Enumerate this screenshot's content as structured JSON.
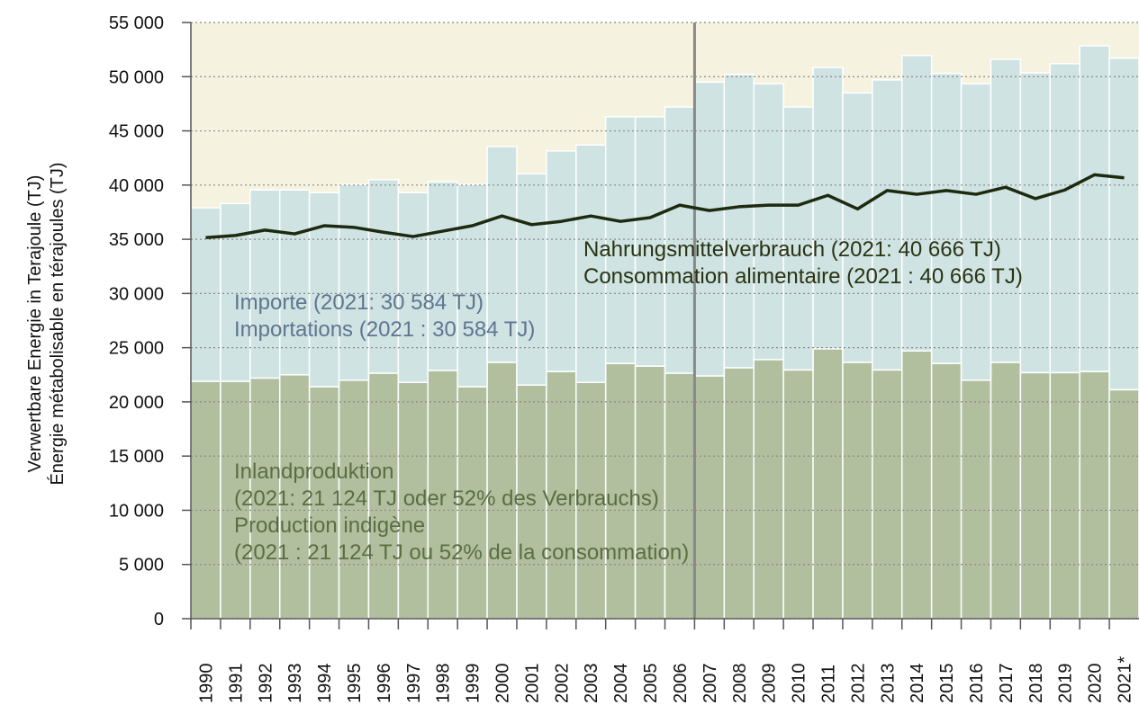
{
  "chart_data": {
    "type": "bar",
    "stacked": true,
    "ylabel": [
      "Verwertbare Energie in Terajoule (TJ)",
      "Énergie métabolisable en térajoules (TJ)"
    ],
    "categories": [
      "1990",
      "1991",
      "1992",
      "1993",
      "1994",
      "1995",
      "1996",
      "1997",
      "1998",
      "1999",
      "2000",
      "2001",
      "2002",
      "2003",
      "2004",
      "2005",
      "2006",
      "2007",
      "2008",
      "2009",
      "2010",
      "2011",
      "2012",
      "2013",
      "2014",
      "2015",
      "2016",
      "2017",
      "2018",
      "2019",
      "2020",
      "2021*"
    ],
    "series": [
      {
        "color": "#b2bf9f",
        "values": [
          21900,
          21900,
          22200,
          22500,
          21400,
          22000,
          22650,
          21800,
          22900,
          21400,
          23650,
          21550,
          22800,
          21800,
          23550,
          23300,
          22650,
          22400,
          23150,
          23900,
          22950,
          24900,
          23650,
          22950,
          24700,
          23550,
          22000,
          23650,
          22700,
          22700,
          22800,
          21124
        ]
      },
      {
        "color": "#cfe3e3",
        "values": [
          16000,
          16400,
          17350,
          17050,
          17900,
          18050,
          17850,
          17500,
          17400,
          18650,
          19900,
          19500,
          20350,
          21900,
          22750,
          23000,
          24550,
          27100,
          27050,
          25450,
          24250,
          25950,
          24850,
          26750,
          27250,
          26750,
          27350,
          27950,
          27650,
          28500,
          30050,
          30584
        ]
      },
      {
        "type": "line",
        "color": "#1e2a10",
        "values": [
          35150,
          35350,
          35850,
          35500,
          36250,
          36100,
          35650,
          35250,
          35750,
          36250,
          37150,
          36350,
          36650,
          37150,
          36650,
          37000,
          38150,
          37650,
          38000,
          38150,
          38150,
          39050,
          37800,
          39500,
          39150,
          39500,
          39150,
          39800,
          38750,
          39550,
          40950,
          40666
        ]
      }
    ],
    "annotations": [
      {
        "lines": [
          "Importe (2021: 30 584 TJ)",
          "Importations (2021 : 30 584 TJ)"
        ],
        "color": "#5f7590"
      },
      {
        "lines": [
          "Nahrungsmittelverbrauch (2021: 40 666 TJ)",
          "Consommation alimentaire (2021 : 40 666 TJ)"
        ],
        "color": "#2a3312"
      },
      {
        "lines": [
          "Inlandproduktion",
          "(2021: 21 124 TJ oder 52% des Verbrauchs)",
          "Production indigène",
          "(2021 : 21 124 TJ ou 52% de la consommation)"
        ],
        "color": "#5b6e42"
      }
    ],
    "ylim": [
      0,
      55000
    ],
    "yticks": [
      {
        "value": 0,
        "label": "0"
      },
      {
        "value": 5000,
        "label": "5 000"
      },
      {
        "value": 10000,
        "label": "10 000"
      },
      {
        "value": 15000,
        "label": "15 000"
      },
      {
        "value": 20000,
        "label": "20 000"
      },
      {
        "value": 25000,
        "label": "25 000"
      },
      {
        "value": 30000,
        "label": "30 000"
      },
      {
        "value": 35000,
        "label": "35 000"
      },
      {
        "value": 40000,
        "label": "40 000"
      },
      {
        "value": 45000,
        "label": "45 000"
      },
      {
        "value": 50000,
        "label": "50 000"
      },
      {
        "value": 55000,
        "label": "55 000"
      }
    ],
    "grid": true,
    "background": "#f5f3e0"
  }
}
